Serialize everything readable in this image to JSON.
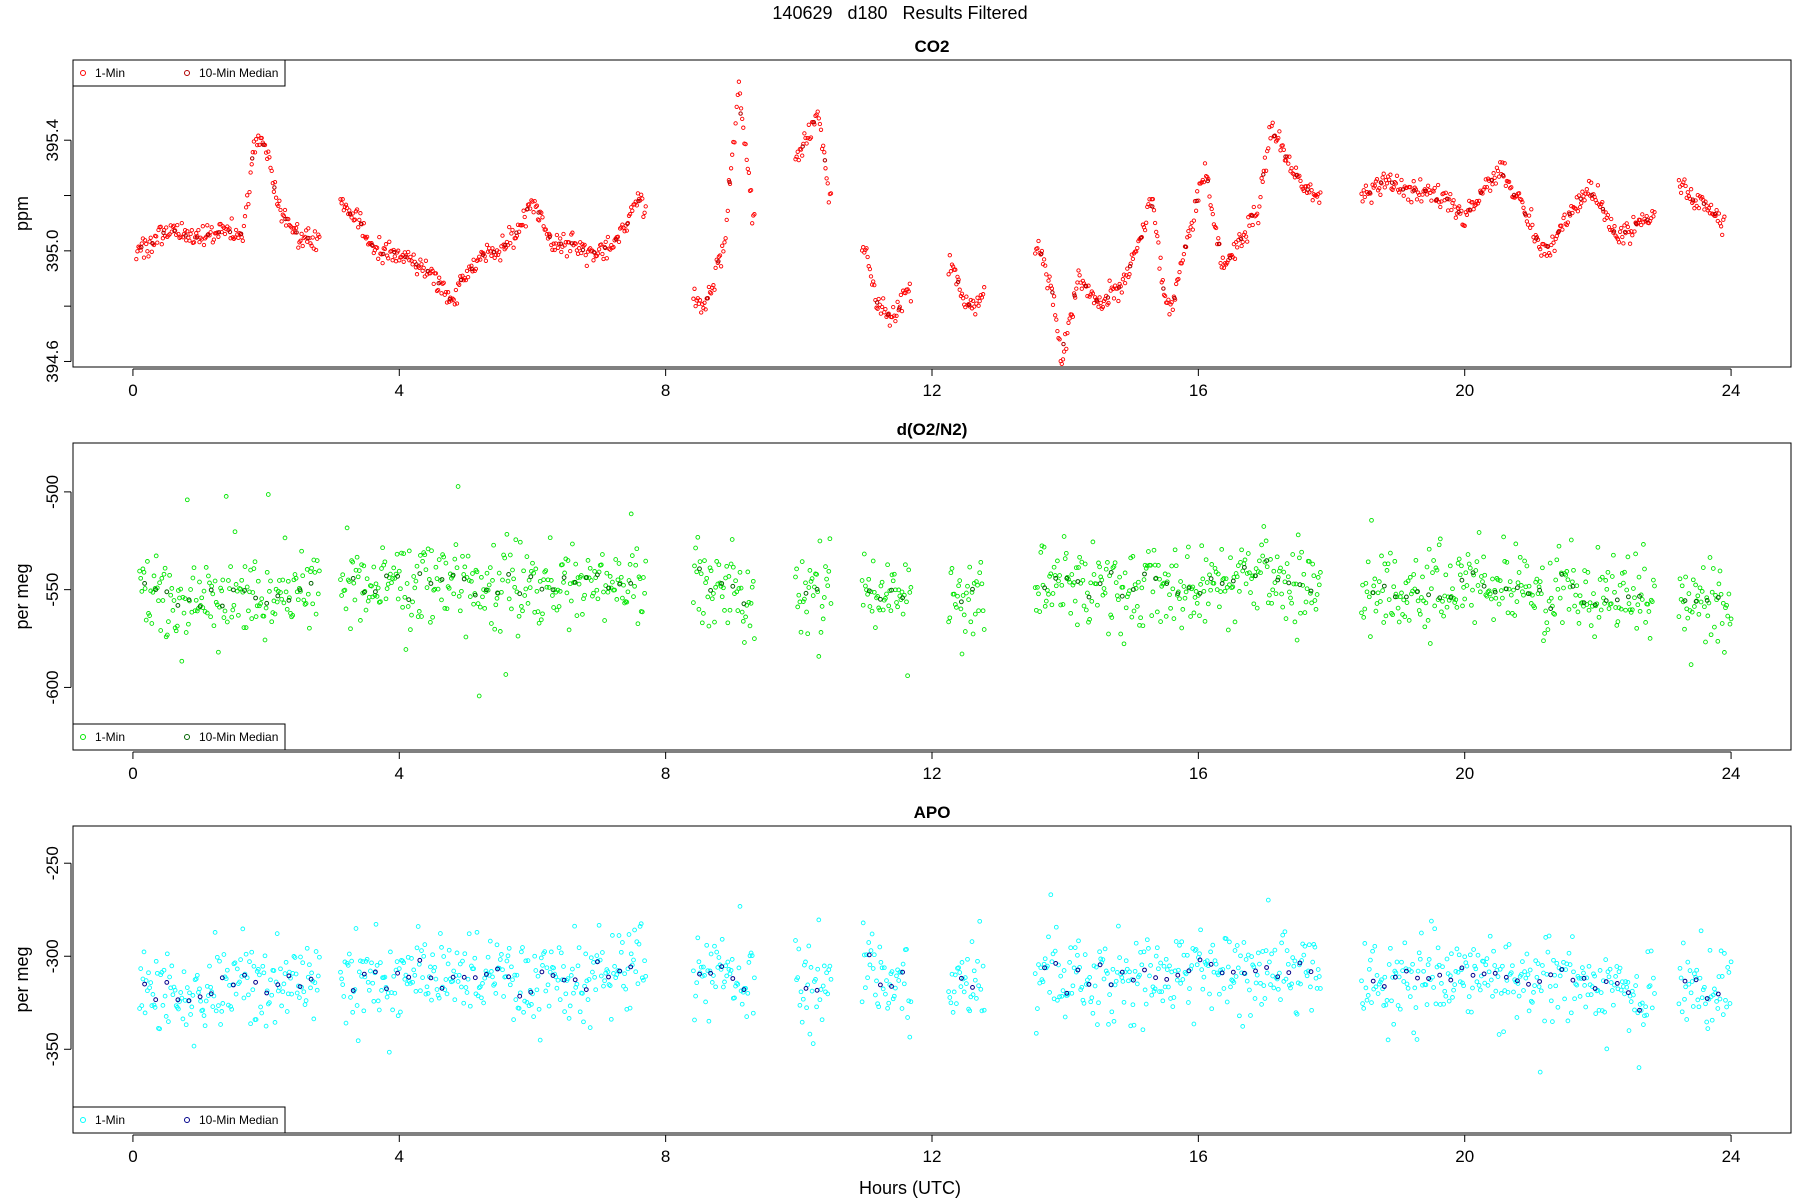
{
  "figure_title": "140629   d180   Results Filtered",
  "xlabel": "Hours (UTC)",
  "chart_data": [
    {
      "type": "scatter",
      "title": "CO2",
      "ylabel": "ppm",
      "xlim": [
        -0.9,
        24.9
      ],
      "ylim": [
        394.58,
        395.69
      ],
      "xticks": [
        0,
        4,
        8,
        12,
        16,
        20,
        24
      ],
      "yticks": [
        394.6,
        395.0,
        395.4
      ],
      "yminor": [
        394.8,
        395.2
      ],
      "ytick_labels": [
        "394.6",
        "395.0",
        "395.4"
      ],
      "legend_position": "top-left",
      "series": [
        {
          "name": "1-Min",
          "color": "#ff0000",
          "anchors": [
            [
              0.05,
              395.0
            ],
            [
              0.6,
              395.07
            ],
            [
              0.9,
              395.05
            ],
            [
              1.4,
              395.08
            ],
            [
              1.65,
              395.05
            ],
            [
              1.8,
              395.35
            ],
            [
              1.95,
              395.42
            ],
            [
              2.2,
              395.15
            ],
            [
              2.5,
              395.05
            ],
            [
              2.75,
              395.03
            ],
            [
              3.15,
              395.18
            ],
            [
              3.6,
              395.02
            ],
            [
              4.0,
              394.98
            ],
            [
              4.5,
              394.92
            ],
            [
              4.75,
              394.82
            ],
            [
              5.1,
              394.95
            ],
            [
              5.4,
              395.0
            ],
            [
              5.8,
              395.07
            ],
            [
              6.0,
              395.18
            ],
            [
              6.3,
              395.03
            ],
            [
              6.6,
              395.02
            ],
            [
              6.9,
              394.98
            ],
            [
              7.3,
              395.05
            ],
            [
              7.6,
              395.2
            ],
            [
              8.4,
              394.82
            ],
            [
              8.6,
              394.8
            ],
            [
              8.9,
              395.05
            ],
            [
              9.0,
              395.35
            ],
            [
              9.1,
              395.6
            ],
            [
              9.3,
              395.15
            ],
            [
              10.0,
              395.35
            ],
            [
              10.3,
              395.5
            ],
            [
              10.45,
              395.2
            ],
            [
              10.8,
              395.15
            ],
            [
              11.0,
              394.98
            ],
            [
              11.2,
              394.8
            ],
            [
              11.4,
              394.75
            ],
            [
              11.6,
              394.85
            ],
            [
              12.3,
              394.95
            ],
            [
              12.5,
              394.8
            ],
            [
              12.7,
              394.82
            ],
            [
              13.6,
              395.02
            ],
            [
              13.8,
              394.85
            ],
            [
              13.95,
              394.6
            ],
            [
              14.2,
              394.9
            ],
            [
              14.5,
              394.8
            ],
            [
              14.8,
              394.85
            ],
            [
              15.0,
              394.95
            ],
            [
              15.3,
              395.2
            ],
            [
              15.5,
              394.82
            ],
            [
              15.6,
              394.8
            ],
            [
              15.9,
              395.1
            ],
            [
              16.1,
              395.3
            ],
            [
              16.35,
              394.95
            ],
            [
              16.6,
              395.02
            ],
            [
              16.9,
              395.15
            ],
            [
              17.1,
              395.45
            ],
            [
              17.4,
              395.3
            ],
            [
              17.7,
              395.2
            ],
            [
              18.5,
              395.2
            ],
            [
              18.8,
              395.25
            ],
            [
              19.2,
              395.22
            ],
            [
              19.7,
              395.2
            ],
            [
              20.0,
              395.12
            ],
            [
              20.5,
              395.3
            ],
            [
              20.8,
              395.2
            ],
            [
              21.2,
              394.98
            ],
            [
              21.6,
              395.15
            ],
            [
              21.9,
              395.22
            ],
            [
              22.3,
              395.05
            ],
            [
              22.8,
              395.12
            ],
            [
              23.2,
              395.25
            ],
            [
              23.9,
              395.1
            ]
          ],
          "gaps": [
            [
              2.8,
              3.1
            ],
            [
              7.7,
              8.4
            ],
            [
              9.35,
              9.95
            ],
            [
              10.5,
              10.95
            ],
            [
              11.7,
              12.25
            ],
            [
              12.8,
              13.55
            ],
            [
              17.85,
              18.45
            ],
            [
              22.85,
              23.2
            ]
          ],
          "noise": 0.02,
          "marker_size": 1.7
        },
        {
          "name": "10-Min Median",
          "color": "#b00000",
          "marker_size": 1.7
        }
      ]
    },
    {
      "type": "scatter",
      "title": "d(O2/N2)",
      "ylabel": "per meg",
      "xlim": [
        -0.9,
        24.9
      ],
      "ylim": [
        -632,
        -475
      ],
      "xticks": [
        0,
        4,
        8,
        12,
        16,
        20,
        24
      ],
      "yticks": [
        -600,
        -550,
        -500
      ],
      "ytick_labels": [
        "-600",
        "-550",
        "-500"
      ],
      "legend_position": "bottom-left",
      "series": [
        {
          "name": "1-Min",
          "color": "#00e600",
          "anchors": [
            [
              0.1,
              -550
            ],
            [
              1.0,
              -555
            ],
            [
              2.0,
              -552
            ],
            [
              3.2,
              -548
            ],
            [
              4.5,
              -548
            ],
            [
              5.5,
              -545
            ],
            [
              6.0,
              -550
            ],
            [
              7.0,
              -545
            ],
            [
              7.8,
              -545
            ],
            [
              9.3,
              -550
            ],
            [
              10.0,
              -550
            ],
            [
              10.5,
              -550
            ],
            [
              11.5,
              -548
            ],
            [
              12.8,
              -552
            ],
            [
              13.6,
              -548
            ],
            [
              15.0,
              -550
            ],
            [
              16.0,
              -545
            ],
            [
              17.0,
              -545
            ],
            [
              17.8,
              -550
            ],
            [
              18.5,
              -550
            ],
            [
              19.5,
              -550
            ],
            [
              20.5,
              -545
            ],
            [
              21.5,
              -550
            ],
            [
              22.7,
              -555
            ],
            [
              23.3,
              -555
            ],
            [
              24.0,
              -558
            ]
          ],
          "gaps": [
            [
              2.8,
              3.1
            ],
            [
              7.7,
              8.4
            ],
            [
              9.35,
              9.95
            ],
            [
              10.5,
              10.95
            ],
            [
              11.7,
              12.25
            ],
            [
              12.8,
              13.55
            ],
            [
              17.85,
              18.45
            ],
            [
              22.85,
              23.2
            ]
          ],
          "noise": 11,
          "marker_size": 1.9
        },
        {
          "name": "10-Min Median",
          "color": "#006400",
          "marker_size": 1.9
        }
      ]
    },
    {
      "type": "scatter",
      "title": "APO",
      "ylabel": "per meg",
      "xlim": [
        -0.9,
        24.9
      ],
      "ylim": [
        -395,
        -230
      ],
      "xticks": [
        0,
        4,
        8,
        12,
        16,
        20,
        24
      ],
      "yticks": [
        -350,
        -300,
        -250
      ],
      "ytick_labels": [
        "-350",
        "-300",
        "-250"
      ],
      "legend_position": "bottom-left",
      "series": [
        {
          "name": "1-Min",
          "color": "#00ffff",
          "anchors": [
            [
              0.1,
              -315
            ],
            [
              1.0,
              -320
            ],
            [
              2.0,
              -315
            ],
            [
              3.2,
              -312
            ],
            [
              4.5,
              -312
            ],
            [
              5.5,
              -310
            ],
            [
              6.0,
              -315
            ],
            [
              7.0,
              -308
            ],
            [
              7.8,
              -305
            ],
            [
              9.3,
              -312
            ],
            [
              10.0,
              -312
            ],
            [
              10.5,
              -315
            ],
            [
              11.5,
              -310
            ],
            [
              12.8,
              -318
            ],
            [
              13.6,
              -310
            ],
            [
              15.0,
              -312
            ],
            [
              16.0,
              -305
            ],
            [
              17.0,
              -308
            ],
            [
              17.8,
              -312
            ],
            [
              18.5,
              -315
            ],
            [
              19.5,
              -312
            ],
            [
              20.5,
              -310
            ],
            [
              21.5,
              -315
            ],
            [
              22.7,
              -320
            ],
            [
              23.3,
              -318
            ],
            [
              24.0,
              -322
            ]
          ],
          "gaps": [
            [
              2.8,
              3.1
            ],
            [
              7.7,
              8.4
            ],
            [
              9.35,
              9.95
            ],
            [
              10.5,
              10.95
            ],
            [
              11.7,
              12.25
            ],
            [
              12.8,
              13.55
            ],
            [
              17.85,
              18.45
            ],
            [
              22.85,
              23.2
            ]
          ],
          "noise": 11,
          "marker_size": 1.9
        },
        {
          "name": "10-Min Median",
          "color": "#00008b",
          "marker_size": 1.9
        }
      ]
    }
  ]
}
